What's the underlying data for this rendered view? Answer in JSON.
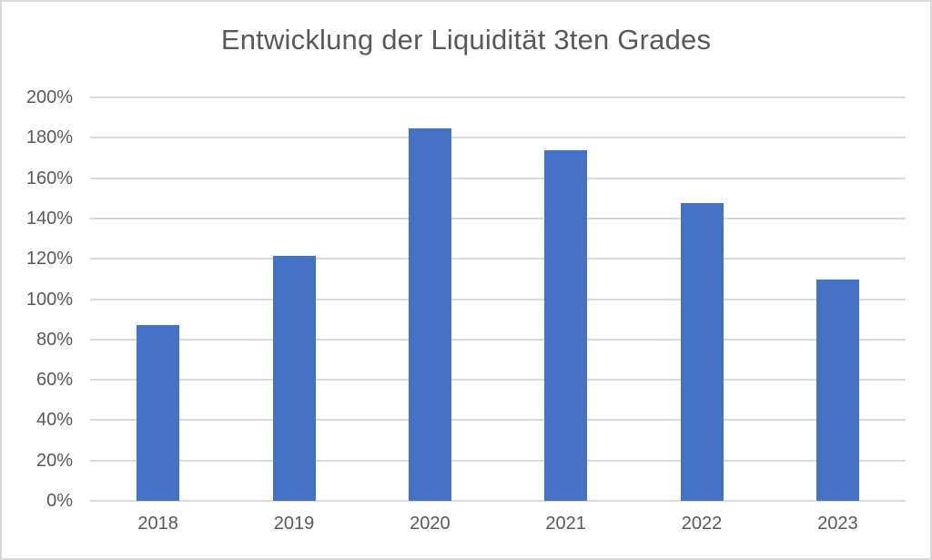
{
  "chart_data": {
    "type": "bar",
    "title": "Entwicklung der Liquidität 3ten Grades",
    "categories": [
      "2018",
      "2019",
      "2020",
      "2021",
      "2022",
      "2023"
    ],
    "values": [
      87,
      121.5,
      184.5,
      174,
      147.5,
      109.5
    ],
    "series": [
      {
        "name": "Liquidität 3ten Grades",
        "values": [
          87,
          121.5,
          184.5,
          174,
          147.5,
          109.5
        ]
      }
    ],
    "xlabel": "",
    "ylabel": "",
    "ylim": [
      0,
      200
    ],
    "ytick_step": 20,
    "ytick_labels": [
      "0%",
      "20%",
      "40%",
      "60%",
      "80%",
      "100%",
      "120%",
      "140%",
      "160%",
      "180%",
      "200%"
    ],
    "grid": true,
    "legend_position": "none",
    "colors": {
      "bar": "#4472C4",
      "gridline": "#d9d9d9",
      "axis_line": "#d9d9d9",
      "text": "#595959",
      "frame_border": "#d9d9d9",
      "background": "#ffffff"
    }
  }
}
